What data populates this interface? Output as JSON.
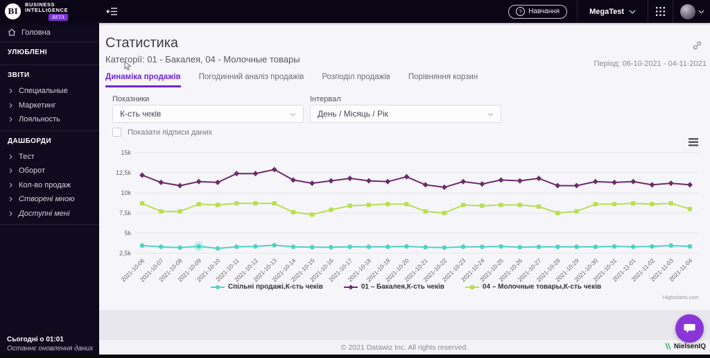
{
  "topbar": {
    "logo": {
      "mark": "BI",
      "line1": "BUSINESS",
      "line2": "INTELLIGENCE",
      "badge": "BETA"
    },
    "training_label": "Навчання",
    "workspace": "MegaTest"
  },
  "icons": {
    "collapse_sidebar": "hamburger-with-left-arrow",
    "training": "question-circle",
    "apps": "3x3-dot-grid",
    "chevron_down": "⌄",
    "link": "chain-link",
    "home": "house-outline",
    "item_chevron": "›",
    "chart_menu": "hamburger",
    "chat": "speech-bubble",
    "cursor": "mouse-pointer-arrow"
  },
  "colors": {
    "accent": "#6d28d9",
    "topbar_bg": "#0b0615",
    "sidebar_bg": "#0f0a1d",
    "beta_badge": "#7a2fd9",
    "chat_bubble": "#8a35d8",
    "nielsen_green": "#2fad49"
  },
  "sidebar": {
    "home_label": "Головна",
    "sections": [
      {
        "title": "УЛЮБЛЕНІ",
        "items": []
      },
      {
        "title": "ЗВІТИ",
        "items": [
          {
            "label": "Специальные"
          },
          {
            "label": "Маркетинг"
          },
          {
            "label": "Лояльность"
          }
        ]
      },
      {
        "title": "ДАШБОРДИ",
        "items": [
          {
            "label": "Тест"
          },
          {
            "label": "Оборот"
          },
          {
            "label": "Кол-во продаж"
          },
          {
            "label": "Створені мною",
            "italic": true
          },
          {
            "label": "Доступні мені",
            "italic": true
          }
        ]
      }
    ],
    "footer": {
      "time": "Сьогодні о 01:01",
      "note": "Останнє оновлення даних"
    }
  },
  "header": {
    "title": "Статистика",
    "subtitle": "Категорії: 01 - Бакалея, 04 - Молочные товары",
    "period": "Період: 06-10-2021 - 04-11-2021"
  },
  "tabs": [
    {
      "label": "Динаміка продажів",
      "active": true
    },
    {
      "label": "Погодинний аналіз продажів",
      "active": false
    },
    {
      "label": "Розподіл продажів",
      "active": false
    },
    {
      "label": "Порівняння корзин",
      "active": false
    }
  ],
  "controls": {
    "metric_label": "Показники",
    "metric_value": "К-сть чеків",
    "interval_label": "Інтервал",
    "interval_value": "День / Місяць / Рік",
    "checkbox_label": "Показати підписи даних",
    "checked": false
  },
  "chart_data": {
    "type": "line",
    "x": [
      "2021-10-06",
      "2021-10-07",
      "2021-10-08",
      "2021-10-09",
      "2021-10-10",
      "2021-10-11",
      "2021-10-12",
      "2021-10-13",
      "2021-10-14",
      "2021-10-15",
      "2021-10-16",
      "2021-10-17",
      "2021-10-18",
      "2021-10-19",
      "2021-10-20",
      "2021-10-21",
      "2021-10-22",
      "2021-10-23",
      "2021-10-24",
      "2021-10-25",
      "2021-10-26",
      "2021-10-27",
      "2021-10-28",
      "2021-10-29",
      "2021-10-30",
      "2021-10-31",
      "2021-11-01",
      "2021-11-02",
      "2021-11-03",
      "2021-11-04"
    ],
    "series": [
      {
        "name": "Спільні продажі,К-сть чеків",
        "color": "#4fd2c5",
        "marker": "circle",
        "values": [
          3450,
          3300,
          3200,
          3350,
          3100,
          3300,
          3350,
          3500,
          3300,
          3250,
          3250,
          3300,
          3300,
          3300,
          3350,
          3250,
          3200,
          3300,
          3300,
          3350,
          3250,
          3300,
          3300,
          3300,
          3300,
          3350,
          3300,
          3350,
          3450,
          3350
        ]
      },
      {
        "name": "01 – Бакалея,К-сть чеків",
        "color": "#6b2c6b",
        "marker": "diamond",
        "values": [
          12200,
          11300,
          10900,
          11400,
          11300,
          12400,
          12400,
          12900,
          11600,
          11200,
          11500,
          11800,
          11500,
          11400,
          12000,
          11000,
          10700,
          11400,
          11100,
          11600,
          11500,
          11800,
          10900,
          10900,
          11400,
          11300,
          11400,
          11000,
          11200,
          11000
        ]
      },
      {
        "name": "04 – Молочные товары,К-сть чеків",
        "color": "#b9de51",
        "marker": "square",
        "values": [
          8700,
          7700,
          7700,
          8600,
          8500,
          8700,
          8700,
          8700,
          7600,
          7300,
          7900,
          8400,
          8500,
          8600,
          8600,
          7700,
          7500,
          8500,
          8400,
          8500,
          8500,
          8300,
          7500,
          7700,
          8600,
          8600,
          8700,
          8600,
          8700,
          8000
        ]
      }
    ],
    "ylim": [
      2500,
      15000
    ],
    "ytick_step": 2500,
    "ytick_labels": [
      "2,5k",
      "5k",
      "7,5k",
      "10k",
      "12,5k",
      "15k"
    ],
    "grid": true,
    "legend_position": "bottom",
    "highlighted_point": {
      "series": 0,
      "index": 3
    },
    "credit": "Highcharts.com"
  },
  "footer": {
    "copyright": "© 2021 Datawiz Inc. All rights reserved.",
    "brand": "NielsenIQ"
  }
}
